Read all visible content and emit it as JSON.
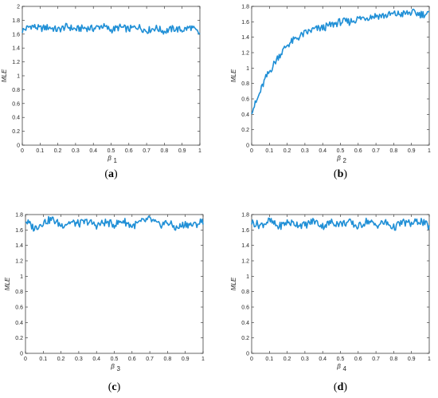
{
  "colors": {
    "series": "#1f8fd6",
    "axis": "#262626"
  },
  "chart_data": [
    {
      "type": "line",
      "caption": {
        "open": "(",
        "letter": "a",
        "close": ")"
      },
      "xlabel": "β",
      "xlabel_sub": "1",
      "ylabel": "MLE",
      "xlim": [
        0,
        1
      ],
      "ylim": [
        0,
        2
      ],
      "xticks": [
        "0",
        "0.1",
        "0.2",
        "0.3",
        "0.4",
        "0.5",
        "0.6",
        "0.7",
        "0.8",
        "0.9",
        "1"
      ],
      "yticks": [
        "0",
        "0.2",
        "0.4",
        "0.6",
        "0.8",
        "1",
        "1.2",
        "1.4",
        "1.6",
        "1.8",
        "2"
      ],
      "x": [
        0,
        0.05,
        0.1,
        0.15,
        0.2,
        0.25,
        0.3,
        0.35,
        0.4,
        0.45,
        0.5,
        0.55,
        0.6,
        0.65,
        0.7,
        0.75,
        0.8,
        0.85,
        0.9,
        0.95,
        1
      ],
      "y": [
        1.65,
        1.72,
        1.68,
        1.7,
        1.66,
        1.71,
        1.67,
        1.69,
        1.68,
        1.72,
        1.66,
        1.7,
        1.67,
        1.71,
        1.65,
        1.69,
        1.64,
        1.68,
        1.66,
        1.7,
        1.6
      ]
    },
    {
      "type": "line",
      "caption": {
        "open": "(",
        "letter": "b",
        "close": ")"
      },
      "xlabel": "β",
      "xlabel_sub": "2",
      "ylabel": "MLE",
      "xlim": [
        0,
        1
      ],
      "ylim": [
        0,
        1.8
      ],
      "xticks": [
        "0",
        "0.1",
        "0.2",
        "0.3",
        "0.4",
        "0.5",
        "0.6",
        "0.7",
        "0.8",
        "0.9",
        "1"
      ],
      "yticks": [
        "0",
        "0.2",
        "0.4",
        "0.6",
        "0.8",
        "1",
        "1.2",
        "1.4",
        "1.6",
        "1.8"
      ],
      "x": [
        0,
        0.025,
        0.05,
        0.075,
        0.1,
        0.125,
        0.15,
        0.175,
        0.2,
        0.25,
        0.3,
        0.35,
        0.4,
        0.45,
        0.5,
        0.55,
        0.6,
        0.65,
        0.7,
        0.75,
        0.8,
        0.85,
        0.9,
        0.95,
        1
      ],
      "y": [
        0.45,
        0.55,
        0.7,
        0.85,
        0.95,
        1.05,
        1.15,
        1.22,
        1.3,
        1.38,
        1.45,
        1.5,
        1.52,
        1.56,
        1.6,
        1.6,
        1.64,
        1.66,
        1.68,
        1.68,
        1.7,
        1.7,
        1.72,
        1.7,
        1.7
      ]
    },
    {
      "type": "line",
      "caption": {
        "open": "(",
        "letter": "c",
        "close": ")"
      },
      "xlabel": "β",
      "xlabel_sub": "3",
      "ylabel": "MLE",
      "xlim": [
        0,
        1
      ],
      "ylim": [
        0,
        1.8
      ],
      "xticks": [
        "0",
        "0.1",
        "0.2",
        "0.3",
        "0.4",
        "0.5",
        "0.6",
        "0.7",
        "0.8",
        "0.9",
        "1"
      ],
      "yticks": [
        "0",
        "0.2",
        "0.4",
        "0.6",
        "0.8",
        "1",
        "1.2",
        "1.4",
        "1.6",
        "1.8"
      ],
      "x": [
        0,
        0.05,
        0.1,
        0.15,
        0.2,
        0.25,
        0.3,
        0.35,
        0.4,
        0.45,
        0.5,
        0.55,
        0.6,
        0.65,
        0.7,
        0.75,
        0.8,
        0.85,
        0.9,
        0.95,
        1
      ],
      "y": [
        1.72,
        1.62,
        1.7,
        1.74,
        1.66,
        1.7,
        1.68,
        1.71,
        1.66,
        1.7,
        1.67,
        1.72,
        1.65,
        1.7,
        1.74,
        1.66,
        1.7,
        1.62,
        1.68,
        1.66,
        1.72
      ]
    },
    {
      "type": "line",
      "caption": {
        "open": "(",
        "letter": "d",
        "close": ")"
      },
      "xlabel": "β",
      "xlabel_sub": "4",
      "ylabel": "MLE",
      "xlim": [
        0,
        1
      ],
      "ylim": [
        0,
        1.8
      ],
      "xticks": [
        "0",
        "0.1",
        "0.2",
        "0.3",
        "0.4",
        "0.5",
        "0.6",
        "0.7",
        "0.8",
        "0.9",
        "1"
      ],
      "yticks": [
        "0",
        "0.2",
        "0.4",
        "0.6",
        "0.8",
        "1",
        "1.2",
        "1.4",
        "1.6",
        "1.8"
      ],
      "x": [
        0,
        0.05,
        0.1,
        0.15,
        0.2,
        0.25,
        0.3,
        0.35,
        0.4,
        0.45,
        0.5,
        0.55,
        0.6,
        0.65,
        0.7,
        0.75,
        0.8,
        0.85,
        0.9,
        0.95,
        1
      ],
      "y": [
        1.7,
        1.66,
        1.72,
        1.64,
        1.7,
        1.68,
        1.66,
        1.72,
        1.65,
        1.7,
        1.68,
        1.7,
        1.64,
        1.72,
        1.66,
        1.7,
        1.63,
        1.7,
        1.68,
        1.72,
        1.64
      ]
    }
  ]
}
